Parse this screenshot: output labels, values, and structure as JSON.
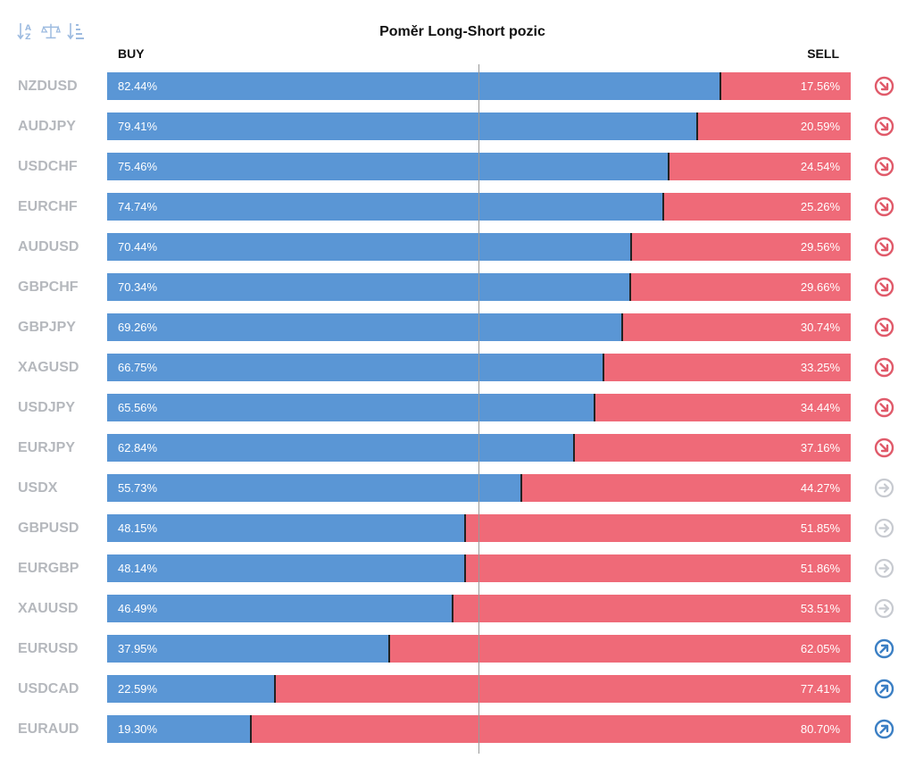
{
  "toolbar": {
    "icons": [
      "sort-alpha-icon",
      "balance-scale-icon",
      "sort-list-icon"
    ]
  },
  "header": {
    "title": "Poměr Long-Short pozic",
    "buy_label": "BUY",
    "sell_label": "SELL"
  },
  "colors": {
    "buy": "#5a96d5",
    "sell": "#ef6a78",
    "down_signal": "#e05a6a",
    "neutral_signal": "#c7cad0",
    "up_signal": "#3b7fc4"
  },
  "chart_data": {
    "type": "bar",
    "stacked": true,
    "orientation": "horizontal",
    "title": "Poměr Long-Short pozic",
    "categories": [
      "NZDUSD",
      "AUDJPY",
      "USDCHF",
      "EURCHF",
      "AUDUSD",
      "GBPCHF",
      "GBPJPY",
      "XAGUSD",
      "USDJPY",
      "EURJPY",
      "USDX",
      "GBPUSD",
      "EURGBP",
      "XAUUSD",
      "EURUSD",
      "USDCAD",
      "EURAUD"
    ],
    "series": [
      {
        "name": "BUY",
        "values": [
          82.44,
          79.41,
          75.46,
          74.74,
          70.44,
          70.34,
          69.26,
          66.75,
          65.56,
          62.84,
          55.73,
          48.15,
          48.14,
          46.49,
          37.95,
          22.59,
          19.3
        ]
      },
      {
        "name": "SELL",
        "values": [
          17.56,
          20.59,
          24.54,
          25.26,
          29.56,
          29.66,
          30.74,
          33.25,
          34.44,
          37.16,
          44.27,
          51.85,
          51.86,
          53.51,
          62.05,
          77.41,
          80.7
        ]
      }
    ],
    "xlim": [
      0,
      100
    ],
    "reference_line": 50
  },
  "rows": [
    {
      "symbol": "NZDUSD",
      "buy": "82.44%",
      "sell": "17.56%",
      "signal": "down"
    },
    {
      "symbol": "AUDJPY",
      "buy": "79.41%",
      "sell": "20.59%",
      "signal": "down"
    },
    {
      "symbol": "USDCHF",
      "buy": "75.46%",
      "sell": "24.54%",
      "signal": "down"
    },
    {
      "symbol": "EURCHF",
      "buy": "74.74%",
      "sell": "25.26%",
      "signal": "down"
    },
    {
      "symbol": "AUDUSD",
      "buy": "70.44%",
      "sell": "29.56%",
      "signal": "down"
    },
    {
      "symbol": "GBPCHF",
      "buy": "70.34%",
      "sell": "29.66%",
      "signal": "down"
    },
    {
      "symbol": "GBPJPY",
      "buy": "69.26%",
      "sell": "30.74%",
      "signal": "down"
    },
    {
      "symbol": "XAGUSD",
      "buy": "66.75%",
      "sell": "33.25%",
      "signal": "down"
    },
    {
      "symbol": "USDJPY",
      "buy": "65.56%",
      "sell": "34.44%",
      "signal": "down"
    },
    {
      "symbol": "EURJPY",
      "buy": "62.84%",
      "sell": "37.16%",
      "signal": "down"
    },
    {
      "symbol": "USDX",
      "buy": "55.73%",
      "sell": "44.27%",
      "signal": "neutral"
    },
    {
      "symbol": "GBPUSD",
      "buy": "48.15%",
      "sell": "51.85%",
      "signal": "neutral"
    },
    {
      "symbol": "EURGBP",
      "buy": "48.14%",
      "sell": "51.86%",
      "signal": "neutral"
    },
    {
      "symbol": "XAUUSD",
      "buy": "46.49%",
      "sell": "53.51%",
      "signal": "neutral"
    },
    {
      "symbol": "EURUSD",
      "buy": "37.95%",
      "sell": "62.05%",
      "signal": "up"
    },
    {
      "symbol": "USDCAD",
      "buy": "22.59%",
      "sell": "77.41%",
      "signal": "up"
    },
    {
      "symbol": "EURAUD",
      "buy": "19.30%",
      "sell": "80.70%",
      "signal": "up"
    }
  ]
}
